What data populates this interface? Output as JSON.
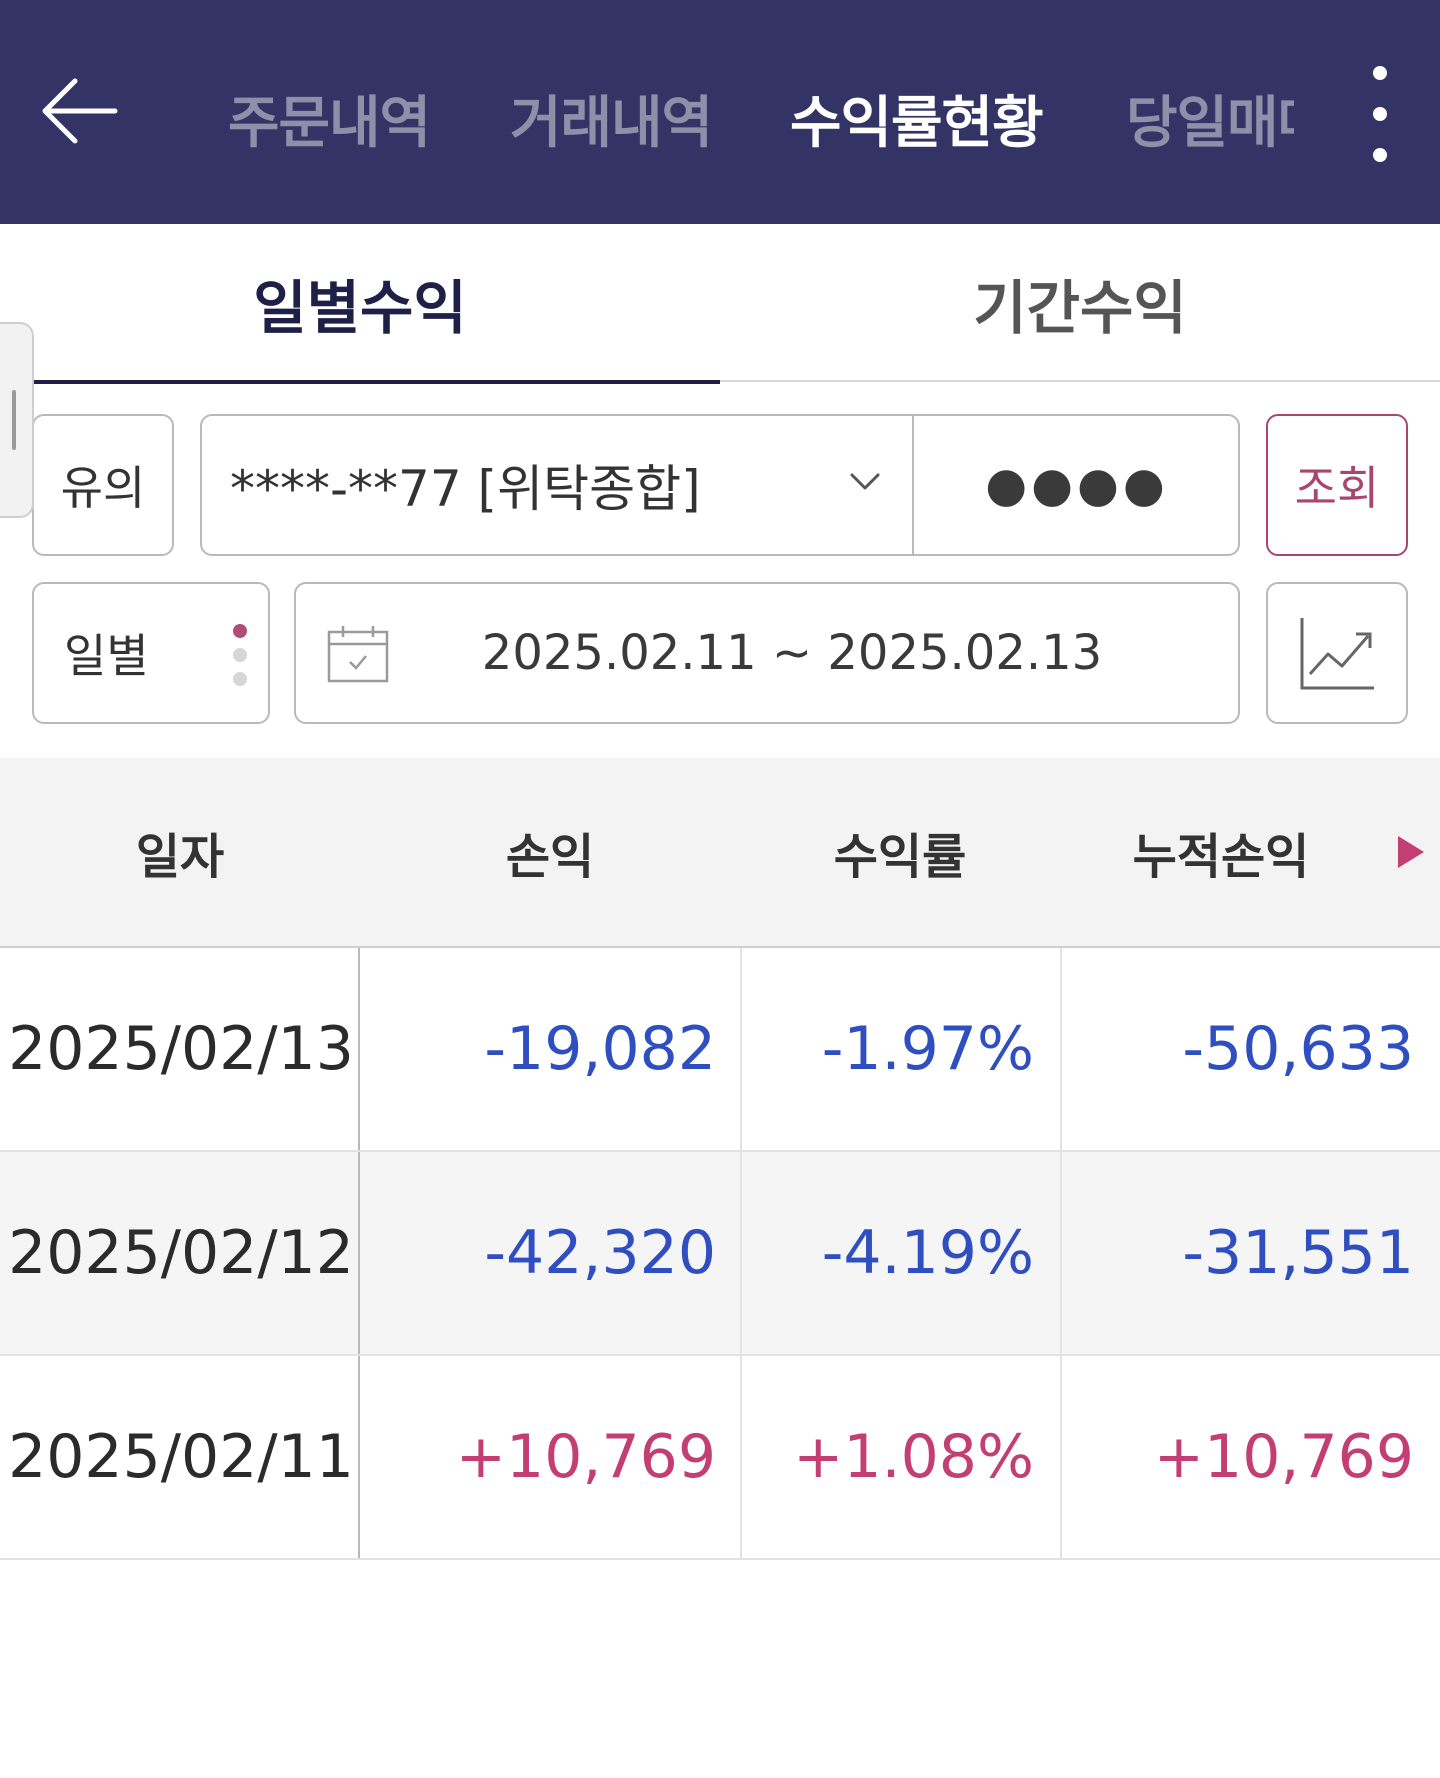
{
  "header": {
    "tabs": [
      {
        "label": "주문내역",
        "active": false
      },
      {
        "label": "거래내역",
        "active": false
      },
      {
        "label": "수익률현황",
        "active": true
      },
      {
        "label": "당일매매",
        "active": false
      }
    ],
    "back_icon": "arrow-left-icon",
    "more_icon": "more-vertical-icon"
  },
  "sub_tabs": [
    {
      "label": "일별수익",
      "active": true
    },
    {
      "label": "기간수익",
      "active": false
    }
  ],
  "form": {
    "notice_label": "유의",
    "account": "****-**77 [위탁종합]",
    "password_mask": "●●●●",
    "search_label": "조회",
    "period_label": "일별",
    "date_range": "2025.02.11 ~ 2025.02.13"
  },
  "table": {
    "columns": [
      "일자",
      "손익",
      "수익률",
      "누적손익"
    ],
    "rows": [
      {
        "date": "2025/02/13",
        "pnl": "-19,082",
        "rate": "-1.97%",
        "cum": "-50,633",
        "sign": "neg"
      },
      {
        "date": "2025/02/12",
        "pnl": "-42,320",
        "rate": "-4.19%",
        "cum": "-31,551",
        "sign": "neg"
      },
      {
        "date": "2025/02/11",
        "pnl": "+10,769",
        "rate": "+1.08%",
        "cum": "+10,769",
        "sign": "pos"
      }
    ]
  },
  "colors": {
    "header_bg": "#333465",
    "accent": "#a7476f",
    "negative": "#2f4fc0",
    "positive": "#c33e72"
  }
}
